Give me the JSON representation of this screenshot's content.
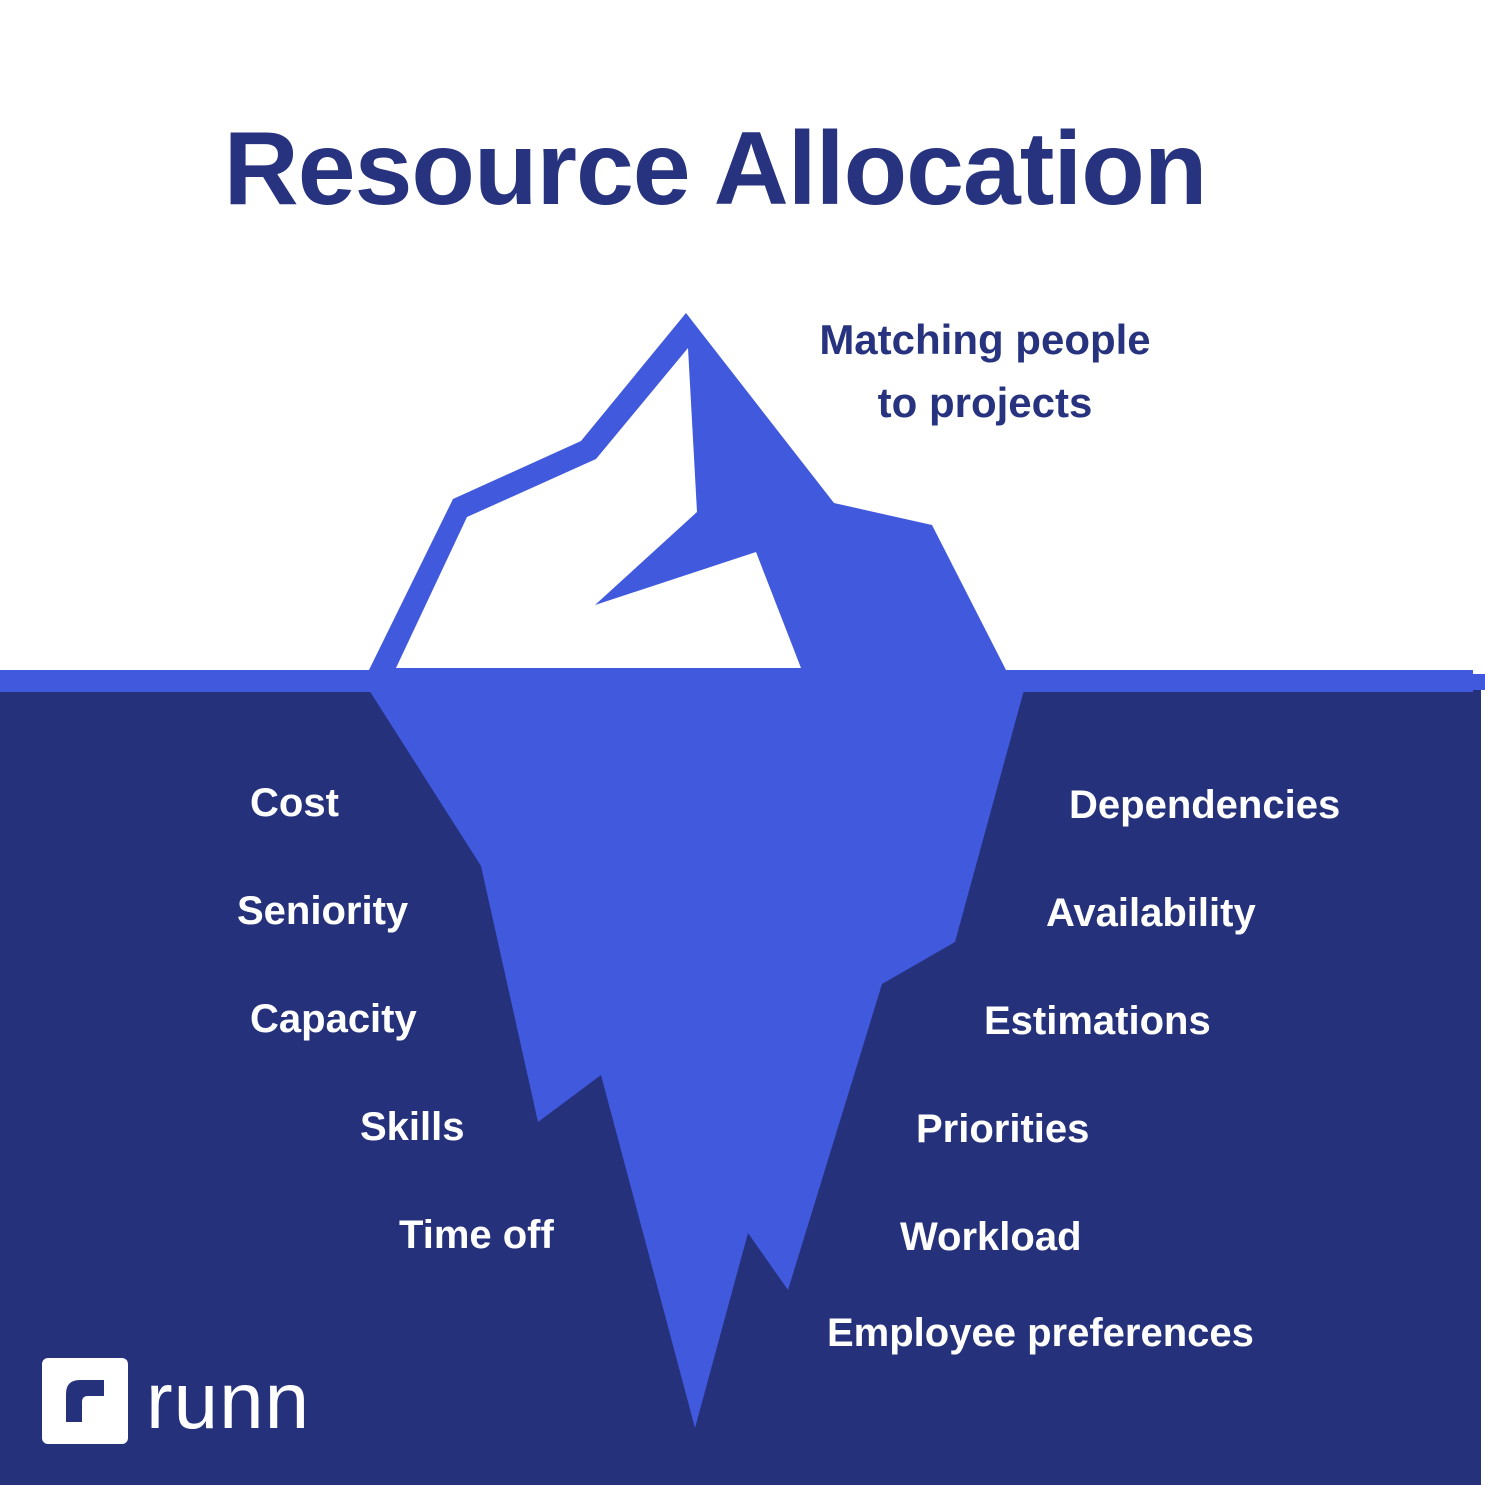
{
  "title": "Resource Allocation",
  "tip": {
    "line1": "Matching people",
    "line2": "to projects"
  },
  "factors_left": [
    "Cost",
    "Seniority",
    "Capacity",
    "Skills",
    "Time off"
  ],
  "factors_right": [
    "Dependencies",
    "Availability",
    "Estimations",
    "Priorities",
    "Workload",
    "Employee preferences"
  ],
  "brand": {
    "name": "runn",
    "logo_icon": "runn-logo-icon"
  },
  "colors": {
    "navy": "#27337f",
    "water": "#26317c",
    "iceberg": "#4159dd",
    "white": "#ffffff"
  }
}
